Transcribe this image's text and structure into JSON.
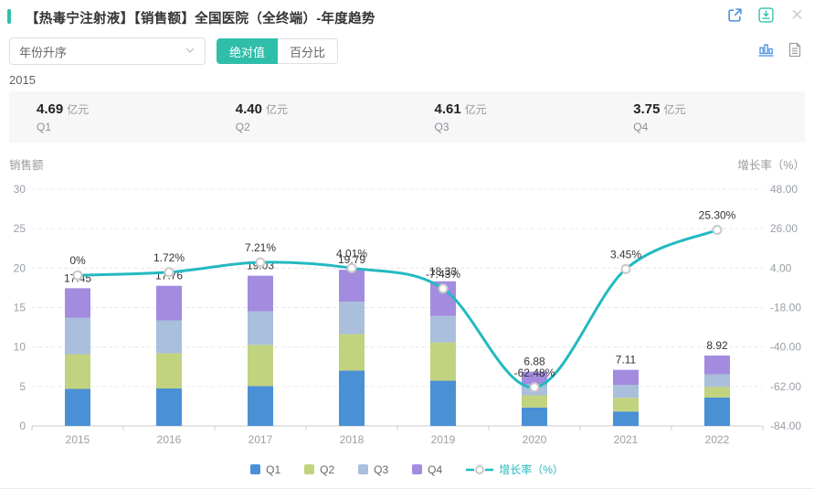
{
  "colors": {
    "accent_teal": "#2FBEA9",
    "line_teal": "#23B9C1",
    "icon_blue": "#4A90E2",
    "q1": "#4A90D5",
    "q2": "#C2D37F",
    "q3": "#A9BFDB",
    "q4": "#A38BE0"
  },
  "header": {
    "title": "【热毒宁注射液】【销售额】全国医院（全终端）-年度趋势",
    "icons": [
      {
        "name": "external-link-icon"
      },
      {
        "name": "download-icon"
      },
      {
        "name": "close-icon",
        "glyph": "✕"
      }
    ]
  },
  "controls": {
    "sort_select": {
      "value": "年份升序",
      "icon": "chevron-down-icon"
    },
    "view_toggle": {
      "options": [
        "绝对值",
        "百分比"
      ],
      "active": "绝对值"
    },
    "chart_type_icons": [
      {
        "name": "bar-chart-icon"
      },
      {
        "name": "report-icon"
      }
    ]
  },
  "year_summary": {
    "year": "2015",
    "unit": "亿元",
    "items": [
      {
        "label": "Q1",
        "value": "4.69"
      },
      {
        "label": "Q2",
        "value": "4.40"
      },
      {
        "label": "Q3",
        "value": "4.61"
      },
      {
        "label": "Q4",
        "value": "3.75"
      }
    ]
  },
  "chart_data": {
    "type": "bar+line",
    "title_left": "销售额",
    "title_right": "增长率（%）",
    "categories": [
      "2015",
      "2016",
      "2017",
      "2018",
      "2019",
      "2020",
      "2021",
      "2022"
    ],
    "series": [
      {
        "name": "Q1",
        "color": "#4A90D5",
        "values": [
          4.69,
          4.75,
          5.06,
          7.01,
          5.73,
          2.33,
          1.83,
          3.6
        ]
      },
      {
        "name": "Q2",
        "color": "#C2D37F",
        "values": [
          4.4,
          4.45,
          5.21,
          4.62,
          4.85,
          1.55,
          1.74,
          1.35
        ]
      },
      {
        "name": "Q3",
        "color": "#A9BFDB",
        "values": [
          4.61,
          4.18,
          4.26,
          4.11,
          3.37,
          1.36,
          1.63,
          1.6
        ]
      },
      {
        "name": "Q4",
        "color": "#A38BE0",
        "values": [
          3.75,
          4.38,
          4.5,
          4.05,
          4.38,
          1.64,
          1.91,
          2.37
        ]
      }
    ],
    "totals": [
      17.45,
      17.76,
      19.03,
      19.79,
      18.33,
      6.88,
      7.11,
      8.92
    ],
    "total_labels": [
      "17.45",
      "17.76",
      "19.03",
      "19.79",
      "18.33",
      "6.88",
      "7.11",
      "8.92"
    ],
    "growth": {
      "name": "增长率（%）",
      "color": "#23B9C1",
      "values": [
        0,
        1.72,
        7.21,
        4.01,
        -7.43,
        -62.48,
        3.45,
        25.3
      ],
      "labels": [
        "0%",
        "1.72%",
        "7.21%",
        "4.01%",
        "-7.43%",
        "-62.48%",
        "3.45%",
        "25.30%"
      ]
    },
    "left_axis": {
      "range": [
        0,
        30
      ],
      "ticks": [
        0,
        5,
        10,
        15,
        20,
        25,
        30
      ]
    },
    "right_axis": {
      "range": [
        -84,
        48
      ],
      "ticks": [
        -84,
        -62,
        -40,
        -18,
        4,
        26,
        48
      ]
    },
    "grid": true,
    "legend_position": "bottom"
  }
}
